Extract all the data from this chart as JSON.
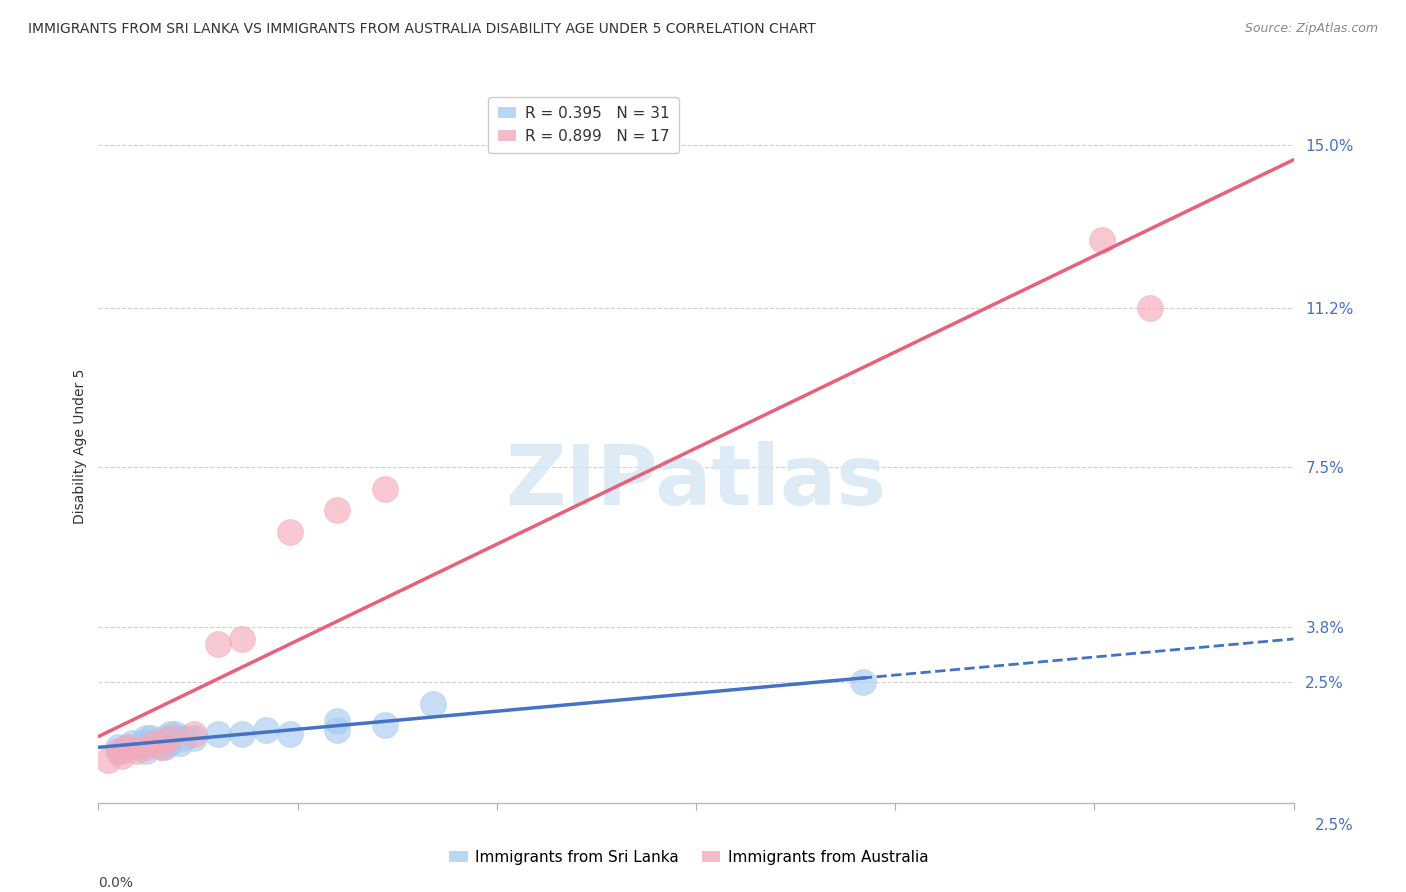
{
  "title": "IMMIGRANTS FROM SRI LANKA VS IMMIGRANTS FROM AUSTRALIA DISABILITY AGE UNDER 5 CORRELATION CHART",
  "source": "Source: ZipAtlas.com",
  "ylabel": "Disability Age Under 5",
  "right_ytick_vals": [
    0.025,
    0.038,
    0.075,
    0.112,
    0.15
  ],
  "right_yticklabels": [
    "2.5%",
    "3.8%",
    "7.5%",
    "11.2%",
    "15.0%"
  ],
  "xmin": 0.0,
  "xmax": 0.025,
  "ymin": -0.003,
  "ymax": 0.163,
  "watermark_text": "ZIPatlas",
  "legend_line1": "R = 0.395   N = 31",
  "legend_line2": "R = 0.899   N = 17",
  "sri_lanka_color": "#A8CCF0",
  "australia_color": "#F4AABB",
  "sri_lanka_trend_color": "#4472C4",
  "australia_trend_color": "#E8607A",
  "background_color": "#FFFFFF",
  "grid_color": "#CCCCCC",
  "sri_lanka_x": [
    0.0004,
    0.0005,
    0.0006,
    0.0007,
    0.0008,
    0.0009,
    0.001,
    0.001,
    0.001,
    0.0011,
    0.0012,
    0.0013,
    0.0013,
    0.0014,
    0.0014,
    0.0015,
    0.0015,
    0.0016,
    0.0016,
    0.0017,
    0.0018,
    0.002,
    0.0025,
    0.003,
    0.0035,
    0.004,
    0.005,
    0.005,
    0.006,
    0.007,
    0.016
  ],
  "sri_lanka_y": [
    0.01,
    0.009,
    0.01,
    0.011,
    0.01,
    0.011,
    0.011,
    0.012,
    0.009,
    0.012,
    0.011,
    0.01,
    0.011,
    0.01,
    0.012,
    0.011,
    0.013,
    0.012,
    0.013,
    0.011,
    0.012,
    0.012,
    0.013,
    0.013,
    0.014,
    0.013,
    0.014,
    0.016,
    0.015,
    0.02,
    0.025
  ],
  "australia_x": [
    0.0002,
    0.0004,
    0.0005,
    0.0006,
    0.0008,
    0.001,
    0.0012,
    0.0013,
    0.0015,
    0.002,
    0.0025,
    0.003,
    0.004,
    0.005,
    0.006,
    0.021,
    0.022
  ],
  "australia_y": [
    0.007,
    0.009,
    0.008,
    0.01,
    0.009,
    0.01,
    0.011,
    0.01,
    0.012,
    0.013,
    0.034,
    0.035,
    0.06,
    0.065,
    0.07,
    0.128,
    0.112
  ],
  "bottom_legend1": "Immigrants from Sri Lanka",
  "bottom_legend2": "Immigrants from Australia"
}
